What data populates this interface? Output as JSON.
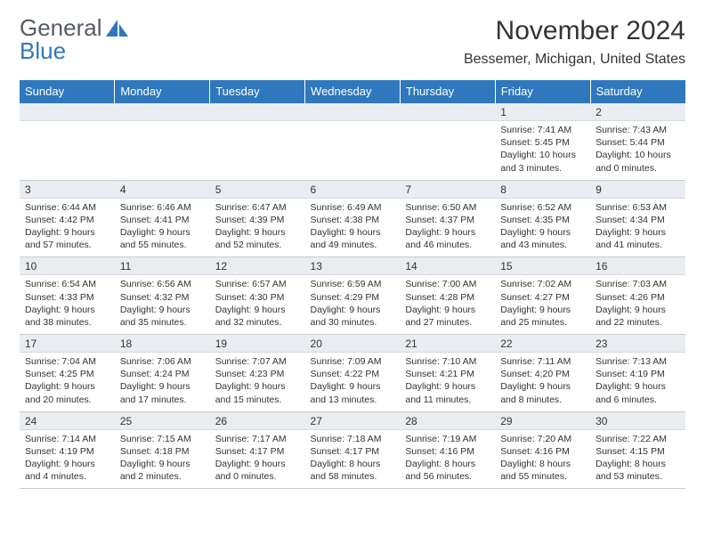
{
  "logo": {
    "word1": "General",
    "word2": "Blue",
    "color1": "#555c63",
    "color2": "#2f78bd"
  },
  "title": "November 2024",
  "location": "Bessemer, Michigan, United States",
  "header_bg": "#2f78bd",
  "band_bg": "#e9edf1",
  "row_top_border": "#2f78bd",
  "weekdays": [
    "Sunday",
    "Monday",
    "Tuesday",
    "Wednesday",
    "Thursday",
    "Friday",
    "Saturday"
  ],
  "weeks": [
    [
      null,
      null,
      null,
      null,
      null,
      {
        "n": "1",
        "sunrise": "Sunrise: 7:41 AM",
        "sunset": "Sunset: 5:45 PM",
        "daylight": "Daylight: 10 hours and 3 minutes."
      },
      {
        "n": "2",
        "sunrise": "Sunrise: 7:43 AM",
        "sunset": "Sunset: 5:44 PM",
        "daylight": "Daylight: 10 hours and 0 minutes."
      }
    ],
    [
      {
        "n": "3",
        "sunrise": "Sunrise: 6:44 AM",
        "sunset": "Sunset: 4:42 PM",
        "daylight": "Daylight: 9 hours and 57 minutes."
      },
      {
        "n": "4",
        "sunrise": "Sunrise: 6:46 AM",
        "sunset": "Sunset: 4:41 PM",
        "daylight": "Daylight: 9 hours and 55 minutes."
      },
      {
        "n": "5",
        "sunrise": "Sunrise: 6:47 AM",
        "sunset": "Sunset: 4:39 PM",
        "daylight": "Daylight: 9 hours and 52 minutes."
      },
      {
        "n": "6",
        "sunrise": "Sunrise: 6:49 AM",
        "sunset": "Sunset: 4:38 PM",
        "daylight": "Daylight: 9 hours and 49 minutes."
      },
      {
        "n": "7",
        "sunrise": "Sunrise: 6:50 AM",
        "sunset": "Sunset: 4:37 PM",
        "daylight": "Daylight: 9 hours and 46 minutes."
      },
      {
        "n": "8",
        "sunrise": "Sunrise: 6:52 AM",
        "sunset": "Sunset: 4:35 PM",
        "daylight": "Daylight: 9 hours and 43 minutes."
      },
      {
        "n": "9",
        "sunrise": "Sunrise: 6:53 AM",
        "sunset": "Sunset: 4:34 PM",
        "daylight": "Daylight: 9 hours and 41 minutes."
      }
    ],
    [
      {
        "n": "10",
        "sunrise": "Sunrise: 6:54 AM",
        "sunset": "Sunset: 4:33 PM",
        "daylight": "Daylight: 9 hours and 38 minutes."
      },
      {
        "n": "11",
        "sunrise": "Sunrise: 6:56 AM",
        "sunset": "Sunset: 4:32 PM",
        "daylight": "Daylight: 9 hours and 35 minutes."
      },
      {
        "n": "12",
        "sunrise": "Sunrise: 6:57 AM",
        "sunset": "Sunset: 4:30 PM",
        "daylight": "Daylight: 9 hours and 32 minutes."
      },
      {
        "n": "13",
        "sunrise": "Sunrise: 6:59 AM",
        "sunset": "Sunset: 4:29 PM",
        "daylight": "Daylight: 9 hours and 30 minutes."
      },
      {
        "n": "14",
        "sunrise": "Sunrise: 7:00 AM",
        "sunset": "Sunset: 4:28 PM",
        "daylight": "Daylight: 9 hours and 27 minutes."
      },
      {
        "n": "15",
        "sunrise": "Sunrise: 7:02 AM",
        "sunset": "Sunset: 4:27 PM",
        "daylight": "Daylight: 9 hours and 25 minutes."
      },
      {
        "n": "16",
        "sunrise": "Sunrise: 7:03 AM",
        "sunset": "Sunset: 4:26 PM",
        "daylight": "Daylight: 9 hours and 22 minutes."
      }
    ],
    [
      {
        "n": "17",
        "sunrise": "Sunrise: 7:04 AM",
        "sunset": "Sunset: 4:25 PM",
        "daylight": "Daylight: 9 hours and 20 minutes."
      },
      {
        "n": "18",
        "sunrise": "Sunrise: 7:06 AM",
        "sunset": "Sunset: 4:24 PM",
        "daylight": "Daylight: 9 hours and 17 minutes."
      },
      {
        "n": "19",
        "sunrise": "Sunrise: 7:07 AM",
        "sunset": "Sunset: 4:23 PM",
        "daylight": "Daylight: 9 hours and 15 minutes."
      },
      {
        "n": "20",
        "sunrise": "Sunrise: 7:09 AM",
        "sunset": "Sunset: 4:22 PM",
        "daylight": "Daylight: 9 hours and 13 minutes."
      },
      {
        "n": "21",
        "sunrise": "Sunrise: 7:10 AM",
        "sunset": "Sunset: 4:21 PM",
        "daylight": "Daylight: 9 hours and 11 minutes."
      },
      {
        "n": "22",
        "sunrise": "Sunrise: 7:11 AM",
        "sunset": "Sunset: 4:20 PM",
        "daylight": "Daylight: 9 hours and 8 minutes."
      },
      {
        "n": "23",
        "sunrise": "Sunrise: 7:13 AM",
        "sunset": "Sunset: 4:19 PM",
        "daylight": "Daylight: 9 hours and 6 minutes."
      }
    ],
    [
      {
        "n": "24",
        "sunrise": "Sunrise: 7:14 AM",
        "sunset": "Sunset: 4:19 PM",
        "daylight": "Daylight: 9 hours and 4 minutes."
      },
      {
        "n": "25",
        "sunrise": "Sunrise: 7:15 AM",
        "sunset": "Sunset: 4:18 PM",
        "daylight": "Daylight: 9 hours and 2 minutes."
      },
      {
        "n": "26",
        "sunrise": "Sunrise: 7:17 AM",
        "sunset": "Sunset: 4:17 PM",
        "daylight": "Daylight: 9 hours and 0 minutes."
      },
      {
        "n": "27",
        "sunrise": "Sunrise: 7:18 AM",
        "sunset": "Sunset: 4:17 PM",
        "daylight": "Daylight: 8 hours and 58 minutes."
      },
      {
        "n": "28",
        "sunrise": "Sunrise: 7:19 AM",
        "sunset": "Sunset: 4:16 PM",
        "daylight": "Daylight: 8 hours and 56 minutes."
      },
      {
        "n": "29",
        "sunrise": "Sunrise: 7:20 AM",
        "sunset": "Sunset: 4:16 PM",
        "daylight": "Daylight: 8 hours and 55 minutes."
      },
      {
        "n": "30",
        "sunrise": "Sunrise: 7:22 AM",
        "sunset": "Sunset: 4:15 PM",
        "daylight": "Daylight: 8 hours and 53 minutes."
      }
    ]
  ]
}
